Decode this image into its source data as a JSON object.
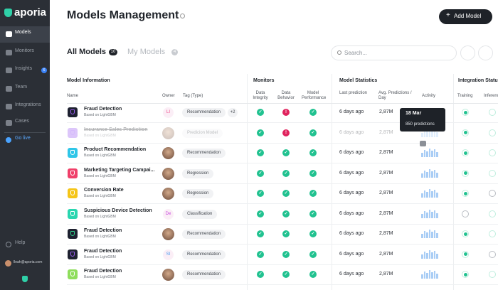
{
  "sidebar": {
    "logo": "aporia",
    "nav": [
      "Models",
      "Monitors",
      "Insights",
      "Team",
      "Integrations",
      "Cases"
    ],
    "insights_badge": 6,
    "go_live": "Go live",
    "help": "Help",
    "user": "lleah@aporia.com"
  },
  "header": {
    "title": "Models Management",
    "add_button": "Add Model"
  },
  "tabs": {
    "all": "All Models",
    "all_count": 10,
    "my": "My Models",
    "my_count": 4,
    "search_placeholder": "Search..."
  },
  "table": {
    "groups": [
      "Model Information",
      "Monitors",
      "Model Statistics",
      "Integration Status"
    ],
    "columns": {
      "name": "Name",
      "owner": "Owner",
      "tag": "Tag (Type)",
      "data_integrity": "Data Integrity",
      "data_behavior": "Data Behavior",
      "model_performance": "Model Performance",
      "last_prediction": "Last prediction",
      "avg_predictions": "Avg. Predictions / Day",
      "activity": "Activity",
      "training": "Training",
      "inference": "Inference"
    },
    "rows": [
      {
        "name": "Fraud Detection",
        "base": "Based on LightGBM",
        "owner": "LI",
        "tag": "Recommendation",
        "extra": "+2",
        "last": "6 days ago",
        "avg": "2,87M"
      },
      {
        "name": "Insurance Sales Prediction",
        "base": "Based on LightGBM",
        "tag": "Predicion Model",
        "last": "6 days ago",
        "avg": "2,87M"
      },
      {
        "name": "Product Recommendation",
        "base": "Based on LightGBM",
        "tag": "Recommendation",
        "last": "6 days ago",
        "avg": "2,87M"
      },
      {
        "name": "Marketing Targeting Campai...",
        "base": "Based on LightGBM",
        "tag": "Regression",
        "last": "6 days ago",
        "avg": "2,87M"
      },
      {
        "name": "Conversion Rate",
        "base": "Based on LightGBM",
        "tag": "Regression",
        "last": "6 days ago",
        "avg": "2,87M"
      },
      {
        "name": "Suspicious Device Detection",
        "base": "Based on LightGBM",
        "owner": "De",
        "tag": "Classification",
        "last": "6 days ago",
        "avg": "2,87M"
      },
      {
        "name": "Fraud Detection",
        "base": "Based on LightGBM",
        "tag": "Recommendation",
        "last": "6 days ago",
        "avg": "2,87M"
      },
      {
        "name": "Fraud Detection",
        "base": "Based on LightGBM",
        "owner": "SI",
        "tag": "Recommendation",
        "last": "6 days ago",
        "avg": "2,87M"
      },
      {
        "name": "Fraud Detection",
        "base": "Based on LightGBM",
        "tag": "Recommendation",
        "last": "6 days ago",
        "avg": "2,87M"
      }
    ]
  },
  "tooltip": {
    "date": "18 Mar",
    "value": "850 predictions"
  }
}
